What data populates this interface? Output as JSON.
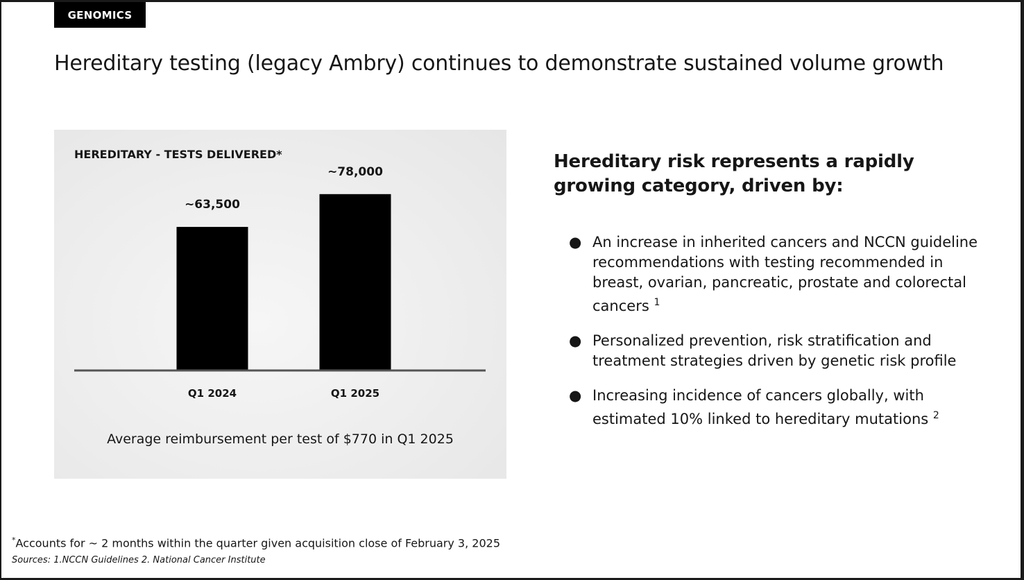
{
  "tag": "GENOMICS",
  "title": "Hereditary testing (legacy Ambry) continues to demonstrate sustained volume growth",
  "chart_data": {
    "type": "bar",
    "title": "HEREDITARY - TESTS DELIVERED*",
    "categories": [
      "Q1 2024",
      "Q1 2025"
    ],
    "values": [
      63500,
      78000
    ],
    "data_labels": [
      "~63,500",
      "~78,000"
    ],
    "xlabel": "",
    "ylabel": "",
    "ylim": [
      0,
      85000
    ],
    "grid": false,
    "caption": "Average reimbursement per test of $770 in Q1 2025",
    "bar_color": "#000000"
  },
  "right": {
    "heading": "Hereditary risk represents a rapidly growing category, driven by:",
    "bullets": [
      {
        "text": "An increase in inherited cancers and NCCN guideline recommendations with testing recommended in breast, ovarian, pancreatic, prostate and colorectal cancers",
        "ref": "1"
      },
      {
        "text": "Personalized prevention, risk stratification and treatment strategies driven by genetic risk profile",
        "ref": ""
      },
      {
        "text": "Increasing incidence of cancers globally, with estimated 10% linked to hereditary mutations",
        "ref": "2"
      }
    ],
    "bullet_symbol": "●"
  },
  "footnote": {
    "marker": "*",
    "text": "Accounts for ~ 2 months within the quarter given acquisition close of February 3, 2025"
  },
  "sources": "Sources: 1.NCCN Guidelines 2. National Cancer Institute"
}
